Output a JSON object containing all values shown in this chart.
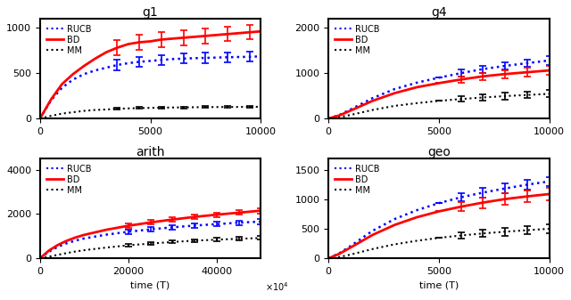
{
  "subplots": [
    {
      "title": "g1",
      "xlabel": "",
      "xlim": [
        0,
        10000
      ],
      "ylim": [
        0,
        1100
      ],
      "yticks": [
        0,
        500,
        1000
      ],
      "xticks": [
        0,
        5000,
        10000
      ],
      "x_scale": 1,
      "RUCB": {
        "x": [
          0,
          500,
          1000,
          1500,
          2000,
          2500,
          3000,
          3500,
          4000,
          4500,
          5000,
          5500,
          6000,
          6500,
          7000,
          7500,
          8000,
          8500,
          9000,
          9500,
          10000
        ],
        "y": [
          0,
          200,
          340,
          430,
          490,
          530,
          560,
          590,
          610,
          625,
          635,
          645,
          655,
          660,
          665,
          668,
          672,
          675,
          678,
          680,
          685
        ],
        "err": [
          0,
          0,
          0,
          0,
          0,
          50,
          55,
          55,
          55,
          55,
          55,
          55,
          55,
          55,
          55,
          55,
          55,
          55,
          55,
          55,
          55
        ]
      },
      "BD": {
        "x": [
          0,
          500,
          1000,
          1500,
          2000,
          2500,
          3000,
          3500,
          4000,
          4500,
          5000,
          5500,
          6000,
          6500,
          7000,
          7500,
          8000,
          8500,
          9000,
          9500,
          10000
        ],
        "y": [
          0,
          210,
          380,
          490,
          580,
          660,
          730,
          780,
          820,
          840,
          850,
          870,
          880,
          890,
          900,
          910,
          920,
          930,
          940,
          950,
          960
        ],
        "err": [
          0,
          0,
          0,
          0,
          0,
          80,
          80,
          80,
          80,
          80,
          80,
          80,
          80,
          80,
          80,
          80,
          80,
          80,
          80,
          80,
          80
        ]
      },
      "MM": {
        "x": [
          0,
          500,
          1000,
          1500,
          2000,
          2500,
          3000,
          3500,
          4000,
          4500,
          5000,
          5500,
          6000,
          6500,
          7000,
          7500,
          8000,
          8500,
          9000,
          9500,
          10000
        ],
        "y": [
          0,
          30,
          55,
          70,
          85,
          95,
          100,
          108,
          112,
          116,
          118,
          120,
          122,
          123,
          125,
          126,
          127,
          128,
          128,
          129,
          130
        ],
        "err": [
          0,
          0,
          0,
          0,
          0,
          10,
          10,
          10,
          10,
          10,
          10,
          10,
          10,
          10,
          10,
          10,
          10,
          10,
          10,
          10,
          10
        ]
      },
      "err_x": [
        3500,
        4500,
        5500,
        6500,
        7500,
        8500,
        9500
      ]
    },
    {
      "title": "g4",
      "xlabel": "",
      "xlim": [
        0,
        10000
      ],
      "ylim": [
        0,
        2200
      ],
      "yticks": [
        0,
        1000,
        2000
      ],
      "xticks": [
        0,
        5000,
        10000
      ],
      "x_scale": 1,
      "RUCB": {
        "x": [
          0,
          500,
          1000,
          2000,
          3000,
          4000,
          5000,
          6000,
          7000,
          8000,
          9000,
          10000
        ],
        "y": [
          0,
          80,
          200,
          450,
          650,
          790,
          900,
          1000,
          1090,
          1160,
          1220,
          1280
        ],
        "err": [
          0,
          0,
          0,
          0,
          0,
          0,
          0,
          80,
          80,
          80,
          80,
          100
        ]
      },
      "BD": {
        "x": [
          0,
          500,
          1000,
          2000,
          3000,
          4000,
          5000,
          6000,
          7000,
          8000,
          9000,
          10000
        ],
        "y": [
          0,
          70,
          175,
          390,
          560,
          690,
          780,
          860,
          930,
          980,
          1020,
          1060
        ],
        "err": [
          0,
          0,
          0,
          0,
          0,
          0,
          0,
          70,
          80,
          90,
          100,
          100
        ]
      },
      "MM": {
        "x": [
          0,
          500,
          1000,
          2000,
          3000,
          4000,
          5000,
          6000,
          7000,
          8000,
          9000,
          10000
        ],
        "y": [
          0,
          30,
          80,
          190,
          280,
          340,
          390,
          430,
          465,
          495,
          520,
          545
        ],
        "err": [
          0,
          0,
          0,
          0,
          0,
          0,
          0,
          60,
          60,
          70,
          70,
          80
        ]
      },
      "err_x": [
        5000,
        6000,
        7000,
        8000,
        9000,
        10000
      ]
    },
    {
      "title": "arith",
      "xlabel": "time (T)",
      "xlim": [
        0,
        50000
      ],
      "ylim": [
        0,
        4500
      ],
      "yticks": [
        0,
        2000,
        4000
      ],
      "xticks": [
        0,
        20000,
        40000
      ],
      "x_scale": 10000,
      "RUCB": {
        "x": [
          0,
          2000,
          4000,
          6000,
          8000,
          10000,
          15000,
          20000,
          25000,
          30000,
          35000,
          40000,
          45000,
          50000
        ],
        "y": [
          0,
          300,
          520,
          680,
          800,
          900,
          1070,
          1200,
          1310,
          1400,
          1480,
          1545,
          1610,
          1660
        ],
        "err": [
          0,
          0,
          0,
          0,
          0,
          0,
          0,
          100,
          100,
          100,
          100,
          100,
          100,
          120
        ]
      },
      "BD": {
        "x": [
          0,
          2000,
          4000,
          6000,
          8000,
          10000,
          15000,
          20000,
          25000,
          30000,
          35000,
          40000,
          45000,
          50000
        ],
        "y": [
          0,
          350,
          600,
          790,
          940,
          1060,
          1290,
          1470,
          1620,
          1750,
          1870,
          1970,
          2060,
          2150
        ],
        "err": [
          0,
          0,
          0,
          0,
          0,
          0,
          0,
          100,
          100,
          100,
          100,
          100,
          100,
          120
        ]
      },
      "MM": {
        "x": [
          0,
          2000,
          4000,
          6000,
          8000,
          10000,
          15000,
          20000,
          25000,
          30000,
          35000,
          40000,
          45000,
          50000
        ],
        "y": [
          0,
          80,
          160,
          240,
          310,
          370,
          490,
          590,
          670,
          740,
          800,
          845,
          885,
          920
        ],
        "err": [
          0,
          0,
          0,
          0,
          0,
          0,
          0,
          60,
          60,
          60,
          70,
          70,
          70,
          80
        ]
      },
      "err_x": [
        20000,
        25000,
        30000,
        35000,
        40000,
        45000,
        50000
      ]
    },
    {
      "title": "geo",
      "xlabel": "time (T)",
      "xlim": [
        0,
        10000
      ],
      "ylim": [
        0,
        1700
      ],
      "yticks": [
        0,
        500,
        1000,
        1500
      ],
      "xticks": [
        0,
        5000,
        10000
      ],
      "x_scale": 1,
      "RUCB": {
        "x": [
          0,
          500,
          1000,
          2000,
          3000,
          4000,
          5000,
          6000,
          7000,
          8000,
          9000,
          10000
        ],
        "y": [
          0,
          90,
          210,
          470,
          670,
          820,
          940,
          1040,
          1120,
          1190,
          1255,
          1310
        ],
        "err": [
          0,
          0,
          0,
          0,
          0,
          0,
          0,
          70,
          80,
          80,
          80,
          80
        ]
      },
      "BD": {
        "x": [
          0,
          500,
          1000,
          2000,
          3000,
          4000,
          5000,
          6000,
          7000,
          8000,
          9000,
          10000
        ],
        "y": [
          0,
          80,
          185,
          400,
          570,
          700,
          800,
          880,
          950,
          1010,
          1055,
          1095
        ],
        "err": [
          0,
          0,
          0,
          0,
          0,
          0,
          0,
          80,
          90,
          100,
          100,
          100
        ]
      },
      "MM": {
        "x": [
          0,
          500,
          1000,
          2000,
          3000,
          4000,
          5000,
          6000,
          7000,
          8000,
          9000,
          10000
        ],
        "y": [
          0,
          25,
          65,
          160,
          240,
          300,
          350,
          390,
          425,
          455,
          480,
          505
        ],
        "err": [
          0,
          0,
          0,
          0,
          0,
          0,
          0,
          55,
          60,
          65,
          65,
          70
        ]
      },
      "err_x": [
        5000,
        6000,
        7000,
        8000,
        9000,
        10000
      ]
    }
  ],
  "colors": {
    "RUCB": "#0000FF",
    "BD": "#FF0000",
    "MM": "#000000"
  },
  "legend_labels": [
    "RUCB",
    "BD",
    "MM"
  ],
  "legend_linestyles": [
    ":",
    "-",
    ":"
  ],
  "legend_linewidths": [
    1.5,
    2.0,
    1.5
  ],
  "legend_colors": [
    "#0000FF",
    "#FF0000",
    "#000000"
  ]
}
